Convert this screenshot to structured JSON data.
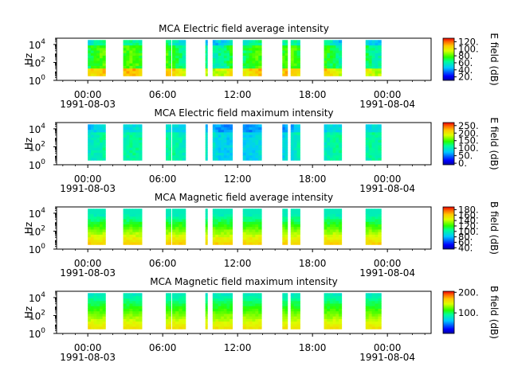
{
  "chart_data": [
    {
      "type": "heatmap",
      "title": "MCA  Electric field average intensity",
      "ylabel": "Hz",
      "colorbar_label": "E field (dB)",
      "colorbar_ticks": [
        "20.",
        "40.",
        "60.",
        "80.",
        "100.",
        "120."
      ],
      "colorbar_range": [
        10,
        130
      ],
      "y_ticks": [
        "10^0",
        "10^2",
        "10^4"
      ],
      "x_ticks": [
        "00:00",
        "06:00",
        "12:00",
        "18:00",
        "00:00"
      ],
      "x_dates": [
        "1991-08-03",
        "1991-08-04"
      ],
      "profile": "avgE",
      "data_blocks": [
        [
          "00:00",
          "01:25"
        ],
        [
          "02:50",
          "04:20"
        ],
        [
          "06:15",
          "06:40"
        ],
        [
          "06:45",
          "07:50"
        ],
        [
          "09:25",
          "09:35"
        ],
        [
          "10:00",
          "10:40"
        ],
        [
          "10:40",
          "11:35"
        ],
        [
          "12:25",
          "13:55"
        ],
        [
          "15:35",
          "16:00"
        ],
        [
          "16:15",
          "17:00"
        ],
        [
          "18:55",
          "20:20"
        ],
        [
          "22:15",
          "23:30"
        ]
      ]
    },
    {
      "type": "heatmap",
      "title": "MCA  Electric field maximum intensity",
      "ylabel": "Hz",
      "colorbar_label": "E field (dB)",
      "colorbar_ticks": [
        "0.",
        "50.",
        "100.",
        "150.",
        "200.",
        "250."
      ],
      "colorbar_range": [
        -10,
        270
      ],
      "y_ticks": [
        "10^0",
        "10^2",
        "10^4"
      ],
      "x_ticks": [
        "00:00",
        "06:00",
        "12:00",
        "18:00",
        "00:00"
      ],
      "x_dates": [
        "1991-08-03",
        "1991-08-04"
      ],
      "profile": "maxE",
      "data_blocks": [
        [
          "00:00",
          "01:25"
        ],
        [
          "02:50",
          "04:20"
        ],
        [
          "06:15",
          "06:40"
        ],
        [
          "06:45",
          "07:50"
        ],
        [
          "09:25",
          "09:35"
        ],
        [
          "10:00",
          "10:40"
        ],
        [
          "10:40",
          "11:35"
        ],
        [
          "12:25",
          "13:55"
        ],
        [
          "15:35",
          "16:00"
        ],
        [
          "16:15",
          "17:00"
        ],
        [
          "18:55",
          "20:20"
        ],
        [
          "22:15",
          "23:30"
        ]
      ]
    },
    {
      "type": "heatmap",
      "title": "MCA  Magnetic field average intensity",
      "ylabel": "Hz",
      "colorbar_label": "B field (dB)",
      "colorbar_ticks": [
        "40.",
        "60.",
        "80.",
        "100.",
        "120.",
        "140.",
        "160.",
        "180."
      ],
      "colorbar_range": [
        35,
        190
      ],
      "y_ticks": [
        "10^0",
        "10^2",
        "10^4"
      ],
      "x_ticks": [
        "00:00",
        "06:00",
        "12:00",
        "18:00",
        "00:00"
      ],
      "x_dates": [
        "1991-08-03",
        "1991-08-04"
      ],
      "profile": "avgB",
      "data_blocks": [
        [
          "00:00",
          "01:25"
        ],
        [
          "02:50",
          "04:20"
        ],
        [
          "06:15",
          "06:40"
        ],
        [
          "06:45",
          "07:50"
        ],
        [
          "09:25",
          "09:35"
        ],
        [
          "10:00",
          "10:40"
        ],
        [
          "10:40",
          "11:35"
        ],
        [
          "12:25",
          "13:55"
        ],
        [
          "15:35",
          "16:00"
        ],
        [
          "16:15",
          "17:00"
        ],
        [
          "18:55",
          "20:20"
        ],
        [
          "22:15",
          "23:30"
        ]
      ]
    },
    {
      "type": "heatmap",
      "title": "MCA  Magnetic field maximum intensity",
      "ylabel": "Hz",
      "colorbar_label": "B field (dB)",
      "colorbar_ticks": [
        "100.",
        "200."
      ],
      "colorbar_range": [
        0,
        205
      ],
      "y_ticks": [
        "10^0",
        "10^2",
        "10^4"
      ],
      "x_ticks": [
        "00:00",
        "06:00",
        "12:00",
        "18:00",
        "00:00"
      ],
      "x_dates": [
        "1991-08-03",
        "1991-08-04"
      ],
      "profile": "maxB",
      "data_blocks": [
        [
          "00:00",
          "01:25"
        ],
        [
          "02:50",
          "04:20"
        ],
        [
          "06:15",
          "06:40"
        ],
        [
          "06:45",
          "07:50"
        ],
        [
          "09:25",
          "09:35"
        ],
        [
          "10:00",
          "10:40"
        ],
        [
          "10:40",
          "11:35"
        ],
        [
          "12:25",
          "13:55"
        ],
        [
          "15:35",
          "16:00"
        ],
        [
          "16:15",
          "17:00"
        ],
        [
          "18:55",
          "20:20"
        ],
        [
          "22:15",
          "23:30"
        ]
      ]
    }
  ],
  "x_range_hours": [
    -2.5,
    27.5
  ],
  "y_range_log10": [
    0,
    4.7
  ],
  "data_log10_range": [
    0.5,
    4.5
  ]
}
